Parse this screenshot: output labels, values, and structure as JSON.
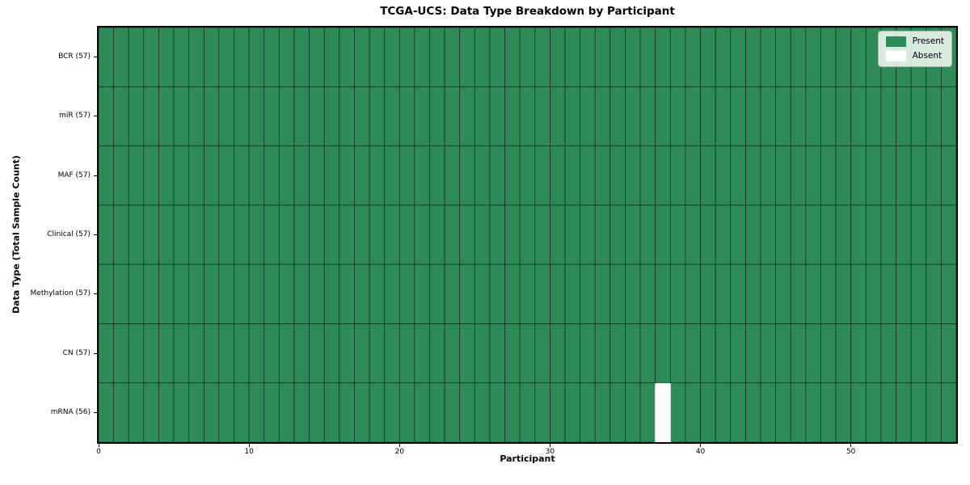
{
  "chart_data": {
    "type": "heatmap",
    "title": "TCGA-UCS: Data Type Breakdown by Participant",
    "xlabel": "Participant",
    "ylabel": "Data Type (Total Sample Count)",
    "x_ticks": [
      0,
      10,
      20,
      30,
      40,
      50
    ],
    "xlim": [
      0,
      57
    ],
    "n_participants": 57,
    "rows": [
      {
        "label": "BCR (57)",
        "total": 57,
        "absent_participants": []
      },
      {
        "label": "miR (57)",
        "total": 57,
        "absent_participants": []
      },
      {
        "label": "MAF (57)",
        "total": 57,
        "absent_participants": []
      },
      {
        "label": "Clinical (57)",
        "total": 57,
        "absent_participants": []
      },
      {
        "label": "Methylation (57)",
        "total": 57,
        "absent_participants": []
      },
      {
        "label": "CN (57)",
        "total": 57,
        "absent_participants": []
      },
      {
        "label": "mRNA (56)",
        "total": 56,
        "absent_participants": [
          37
        ]
      }
    ],
    "legend": {
      "position": "upper-right",
      "entries": [
        {
          "label": "Present",
          "color": "#2e8b57"
        },
        {
          "label": "Absent",
          "color": "#ffffff"
        }
      ]
    },
    "colors": {
      "present": "#2e8b57",
      "absent": "#ffffff",
      "cell_edge": "#000000",
      "spine": "#000000"
    }
  }
}
